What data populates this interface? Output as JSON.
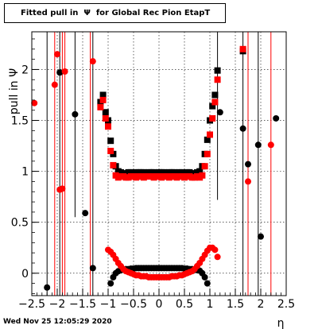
{
  "title": "Fitted pull in  Ψ  for Global Rec Pion EtapT",
  "timestamp": "Wed Nov 25 12:05:29 2020",
  "chart_data": {
    "type": "scatter",
    "title": "Fitted pull in  Ψ  for Global Rec Pion EtapT",
    "xlabel": "η",
    "ylabel": "pull in  Ψ",
    "xlim": [
      -2.5,
      2.5
    ],
    "ylim": [
      -0.22,
      2.37
    ],
    "grid": true,
    "x_ticks": [
      -2.5,
      -2,
      -1.5,
      -1,
      -0.5,
      0,
      0.5,
      1,
      1.5,
      2,
      2.5
    ],
    "x_tick_labels": [
      "−2.5",
      "−2",
      "−1.5",
      "−1",
      "−0.5",
      "0",
      "0.5",
      "1",
      "1.5",
      "2",
      "2.5"
    ],
    "y_ticks": [
      0,
      0.5,
      1,
      1.5,
      2
    ],
    "y_tick_labels": [
      "0",
      "0.5",
      "1",
      "1.5",
      "2"
    ],
    "series": [
      {
        "color": "#000000",
        "marker": "circle",
        "points": [
          [
            -2.2,
            -0.14
          ],
          [
            -1.95,
            1.97
          ],
          [
            -1.65,
            1.56
          ],
          [
            -1.45,
            0.59
          ],
          [
            -1.3,
            0.05
          ],
          [
            -0.95,
            -0.1
          ],
          [
            -0.9,
            -0.04
          ],
          [
            -0.85,
            0.0
          ],
          [
            -0.8,
            0.02
          ],
          [
            -0.75,
            0.03
          ],
          [
            -0.7,
            0.035
          ],
          [
            -0.65,
            0.04
          ],
          [
            -0.6,
            0.04
          ],
          [
            -0.55,
            0.045
          ],
          [
            -0.5,
            0.045
          ],
          [
            -0.45,
            0.05
          ],
          [
            -0.4,
            0.05
          ],
          [
            -0.35,
            0.05
          ],
          [
            -0.3,
            0.05
          ],
          [
            -0.25,
            0.05
          ],
          [
            -0.2,
            0.05
          ],
          [
            -0.15,
            0.05
          ],
          [
            -0.1,
            0.05
          ],
          [
            -0.05,
            0.05
          ],
          [
            0.0,
            0.05
          ],
          [
            0.05,
            0.05
          ],
          [
            0.1,
            0.05
          ],
          [
            0.15,
            0.05
          ],
          [
            0.2,
            0.05
          ],
          [
            0.25,
            0.05
          ],
          [
            0.3,
            0.05
          ],
          [
            0.35,
            0.05
          ],
          [
            0.4,
            0.05
          ],
          [
            0.45,
            0.05
          ],
          [
            0.5,
            0.045
          ],
          [
            0.55,
            0.045
          ],
          [
            0.6,
            0.04
          ],
          [
            0.65,
            0.04
          ],
          [
            0.7,
            0.035
          ],
          [
            0.75,
            0.03
          ],
          [
            0.8,
            0.025
          ],
          [
            0.85,
            0.0
          ],
          [
            0.9,
            -0.04
          ],
          [
            0.95,
            -0.1
          ],
          [
            1.2,
            1.58
          ],
          [
            1.65,
            1.42
          ],
          [
            1.75,
            1.07
          ],
          [
            1.95,
            1.26
          ],
          [
            2.0,
            0.36
          ],
          [
            2.3,
            1.52
          ]
        ]
      },
      {
        "color": "#000000",
        "marker": "square",
        "points": [
          [
            -1.15,
            1.68
          ],
          [
            -1.1,
            1.75
          ],
          [
            -1.05,
            1.58
          ],
          [
            -1.0,
            1.5
          ],
          [
            -0.95,
            1.3
          ],
          [
            -0.9,
            1.17
          ],
          [
            -0.85,
            1.05
          ],
          [
            -0.8,
            1.0
          ],
          [
            -0.75,
            0.99
          ],
          [
            -0.7,
            0.98
          ],
          [
            -0.65,
            0.98
          ],
          [
            -0.6,
            0.99
          ],
          [
            -0.55,
            0.99
          ],
          [
            -0.5,
            0.98
          ],
          [
            -0.45,
            0.99
          ],
          [
            -0.4,
            0.99
          ],
          [
            -0.35,
            0.99
          ],
          [
            -0.3,
            0.99
          ],
          [
            -0.25,
            0.98
          ],
          [
            -0.2,
            0.99
          ],
          [
            -0.15,
            0.99
          ],
          [
            -0.1,
            0.99
          ],
          [
            -0.05,
            0.98
          ],
          [
            0.0,
            0.99
          ],
          [
            0.05,
            0.99
          ],
          [
            0.1,
            0.99
          ],
          [
            0.15,
            0.98
          ],
          [
            0.2,
            0.99
          ],
          [
            0.25,
            0.99
          ],
          [
            0.3,
            0.99
          ],
          [
            0.35,
            0.98
          ],
          [
            0.4,
            0.99
          ],
          [
            0.45,
            0.99
          ],
          [
            0.5,
            0.98
          ],
          [
            0.55,
            0.99
          ],
          [
            0.6,
            0.99
          ],
          [
            0.65,
            0.98
          ],
          [
            0.7,
            0.98
          ],
          [
            0.75,
            0.99
          ],
          [
            0.8,
            1.0
          ],
          [
            0.85,
            1.05
          ],
          [
            0.9,
            1.17
          ],
          [
            0.95,
            1.31
          ],
          [
            1.0,
            1.5
          ],
          [
            1.05,
            1.64
          ],
          [
            1.1,
            1.75
          ],
          [
            1.15,
            1.99
          ],
          [
            1.65,
            2.18
          ]
        ]
      },
      {
        "color": "#ff0000",
        "marker": "circle",
        "points": [
          [
            -2.45,
            1.67
          ],
          [
            -2.05,
            1.85
          ],
          [
            -2.0,
            2.15
          ],
          [
            -1.95,
            0.82
          ],
          [
            -1.9,
            0.83
          ],
          [
            -1.85,
            1.98
          ],
          [
            -1.3,
            2.08
          ],
          [
            -1.0,
            0.23
          ],
          [
            -0.95,
            0.21
          ],
          [
            -0.9,
            0.18
          ],
          [
            -0.85,
            0.14
          ],
          [
            -0.8,
            0.1
          ],
          [
            -0.75,
            0.07
          ],
          [
            -0.7,
            0.04
          ],
          [
            -0.65,
            0.02
          ],
          [
            -0.6,
            0.01
          ],
          [
            -0.55,
            0.0
          ],
          [
            -0.5,
            -0.01
          ],
          [
            -0.45,
            -0.02
          ],
          [
            -0.4,
            -0.02
          ],
          [
            -0.35,
            -0.03
          ],
          [
            -0.3,
            -0.03
          ],
          [
            -0.25,
            -0.03
          ],
          [
            -0.2,
            -0.04
          ],
          [
            -0.15,
            -0.04
          ],
          [
            -0.1,
            -0.04
          ],
          [
            -0.05,
            -0.04
          ],
          [
            0.0,
            -0.04
          ],
          [
            0.05,
            -0.04
          ],
          [
            0.1,
            -0.04
          ],
          [
            0.15,
            -0.04
          ],
          [
            0.2,
            -0.04
          ],
          [
            0.25,
            -0.03
          ],
          [
            0.3,
            -0.03
          ],
          [
            0.35,
            -0.03
          ],
          [
            0.4,
            -0.02
          ],
          [
            0.45,
            -0.02
          ],
          [
            0.5,
            -0.01
          ],
          [
            0.55,
            0.0
          ],
          [
            0.6,
            0.01
          ],
          [
            0.65,
            0.02
          ],
          [
            0.7,
            0.04
          ],
          [
            0.75,
            0.07
          ],
          [
            0.8,
            0.1
          ],
          [
            0.85,
            0.14
          ],
          [
            0.9,
            0.18
          ],
          [
            0.95,
            0.22
          ],
          [
            1.0,
            0.25
          ],
          [
            1.05,
            0.25
          ],
          [
            1.1,
            0.23
          ],
          [
            1.15,
            0.16
          ],
          [
            1.75,
            0.9
          ],
          [
            2.2,
            1.26
          ]
        ]
      },
      {
        "color": "#ff0000",
        "marker": "square",
        "points": [
          [
            -1.15,
            1.63
          ],
          [
            -1.1,
            1.7
          ],
          [
            -1.05,
            1.52
          ],
          [
            -1.0,
            1.44
          ],
          [
            -0.95,
            1.2
          ],
          [
            -0.9,
            1.06
          ],
          [
            -0.85,
            0.96
          ],
          [
            -0.8,
            0.94
          ],
          [
            -0.75,
            0.95
          ],
          [
            -0.7,
            0.95
          ],
          [
            -0.65,
            0.94
          ],
          [
            -0.6,
            0.94
          ],
          [
            -0.55,
            0.95
          ],
          [
            -0.5,
            0.95
          ],
          [
            -0.45,
            0.94
          ],
          [
            -0.4,
            0.95
          ],
          [
            -0.35,
            0.95
          ],
          [
            -0.3,
            0.94
          ],
          [
            -0.25,
            0.95
          ],
          [
            -0.2,
            0.95
          ],
          [
            -0.15,
            0.95
          ],
          [
            -0.1,
            0.94
          ],
          [
            -0.05,
            0.95
          ],
          [
            0.0,
            0.95
          ],
          [
            0.05,
            0.94
          ],
          [
            0.1,
            0.95
          ],
          [
            0.15,
            0.95
          ],
          [
            0.2,
            0.94
          ],
          [
            0.25,
            0.95
          ],
          [
            0.3,
            0.95
          ],
          [
            0.35,
            0.94
          ],
          [
            0.4,
            0.95
          ],
          [
            0.45,
            0.95
          ],
          [
            0.5,
            0.94
          ],
          [
            0.55,
            0.95
          ],
          [
            0.6,
            0.95
          ],
          [
            0.65,
            0.94
          ],
          [
            0.7,
            0.94
          ],
          [
            0.75,
            0.95
          ],
          [
            0.8,
            0.94
          ],
          [
            0.85,
            0.96
          ],
          [
            0.9,
            1.05
          ],
          [
            0.95,
            1.17
          ],
          [
            1.0,
            1.36
          ],
          [
            1.05,
            1.52
          ],
          [
            1.1,
            1.68
          ],
          [
            1.15,
            1.9
          ],
          [
            1.65,
            2.2
          ]
        ]
      }
    ],
    "error_bars": [
      {
        "x": -2.2,
        "color": "#000000",
        "y_low": -0.22,
        "y_high": 2.37
      },
      {
        "x": -1.95,
        "color": "#000000",
        "y_low": -0.22,
        "y_high": 2.37
      },
      {
        "x": -1.65,
        "color": "#000000",
        "y_low": 0.55,
        "y_high": 2.37
      },
      {
        "x": -1.3,
        "color": "#000000",
        "y_low": -0.22,
        "y_high": 2.37
      },
      {
        "x": 1.15,
        "color": "#000000",
        "y_low": 0.72,
        "y_high": 2.37
      },
      {
        "x": 1.65,
        "color": "#000000",
        "y_low": -0.22,
        "y_high": 2.37
      },
      {
        "x": 1.95,
        "color": "#000000",
        "y_low": -0.22,
        "y_high": 2.37
      },
      {
        "x": -2.05,
        "color": "#ff0000",
        "y_low": -0.22,
        "y_high": 2.37
      },
      {
        "x": -1.9,
        "color": "#ff0000",
        "y_low": -0.22,
        "y_high": 2.37
      },
      {
        "x": -1.85,
        "color": "#ff0000",
        "y_low": -0.22,
        "y_high": 2.37
      },
      {
        "x": -1.35,
        "color": "#ff0000",
        "y_low": -0.22,
        "y_high": 2.37
      },
      {
        "x": 1.75,
        "color": "#ff0000",
        "y_low": -0.22,
        "y_high": 2.37
      },
      {
        "x": 2.2,
        "color": "#ff0000",
        "y_low": -0.22,
        "y_high": 2.37
      }
    ]
  }
}
